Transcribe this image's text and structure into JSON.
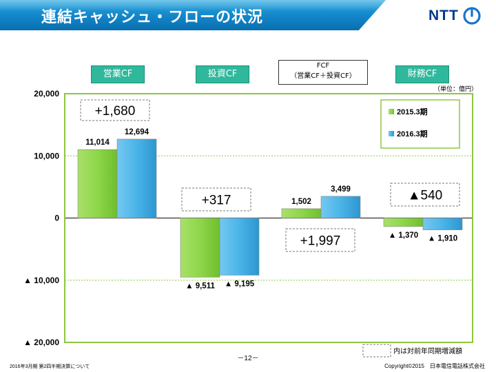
{
  "slide": {
    "title": "連結キャッシュ・フローの状況",
    "logo_text": "NTT",
    "unit_label": "（単位：億円）",
    "page_number": "－12－",
    "footer_left": "2016年3月期 第2四半期決算について",
    "footer_right": "Copyright©2015　日本電信電話株式会社",
    "note_label": "内は対前年同期増減額",
    "categories": {
      "operating": "営業CF",
      "investing": "投資CF",
      "fcf_line1": "FCF",
      "fcf_line2": "（営業CF＋投資CF）",
      "financing": "財務CF"
    },
    "colors": {
      "plot_border": "#8dc63f",
      "series_2015": "#8ed64a",
      "series_2016": "#4ab4e8",
      "category_label_bg": "#2fb89c"
    }
  },
  "chart_data": {
    "type": "bar",
    "categories": [
      "営業CF",
      "投資CF",
      "FCF（営業CF＋投資CF）",
      "財務CF"
    ],
    "series": [
      {
        "name": "2015.3期",
        "values": [
          11014,
          -9511,
          1502,
          -1370
        ],
        "labels": [
          "11,014",
          "▲ 9,511",
          "1,502",
          "▲ 1,370"
        ]
      },
      {
        "name": "2016.3期",
        "values": [
          12694,
          -9195,
          3499,
          -1910
        ],
        "labels": [
          "12,694",
          "▲ 9,195",
          "3,499",
          "▲ 1,910"
        ]
      }
    ],
    "ylim": [
      -20000,
      20000
    ],
    "yticks": [
      20000,
      10000,
      0,
      -10000,
      -20000
    ],
    "ytick_labels": [
      "20,000",
      "10,000",
      "0",
      "▲ 10,000",
      "▲ 20,000"
    ],
    "grid": true,
    "legend_position": "top-right",
    "annotations": [
      "+1,680",
      "+317",
      "+1,997",
      "▲540"
    ]
  }
}
